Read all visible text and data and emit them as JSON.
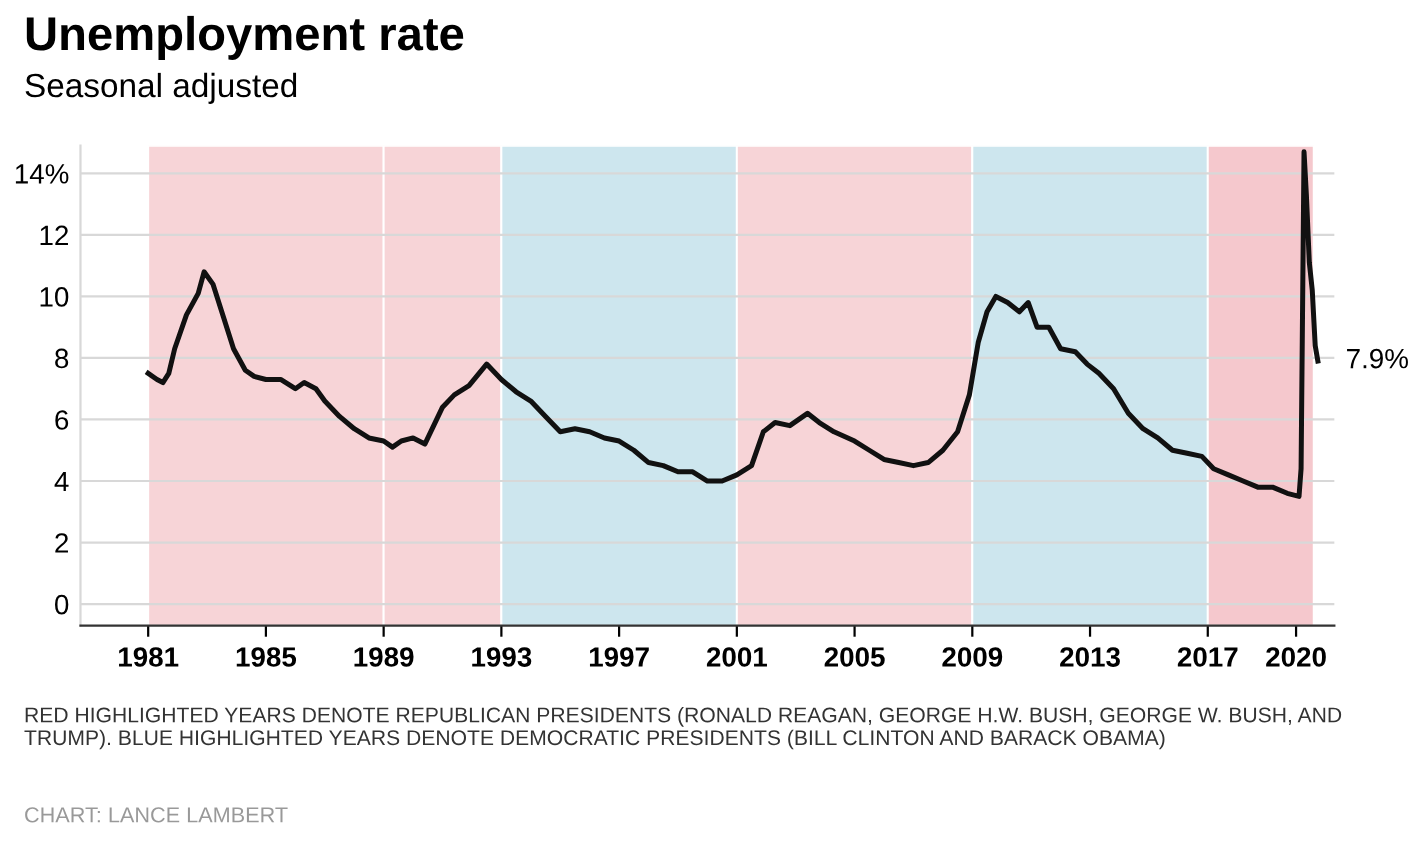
{
  "chart_data": {
    "type": "line",
    "title": "Unemployment rate",
    "subtitle": "Seasonal adjusted",
    "annotations": [
      {
        "text": "7.9%",
        "x": 2020.74,
        "y": 7.9
      },
      "RED HIGHLIGHTED YEARS DENOTE REPUBLICAN PRESIDENTS (RONALD REAGAN, GEORGE H.W. BUSH, GEORGE W. BUSH, AND TRUMP). BLUE HIGHLIGHTED YEARS DENOTE DEMOCRATIC PRESIDENTS (BILL CLINTON AND BARACK OBAMA)",
      "CHART: LANCE LAMBERT"
    ],
    "x": [
      1981.0,
      1981.3,
      1981.5,
      1981.7,
      1981.9,
      1982.3,
      1982.7,
      1982.9,
      1983.2,
      1983.5,
      1983.9,
      1984.3,
      1984.6,
      1985.0,
      1985.5,
      1986.0,
      1986.3,
      1986.7,
      1987.0,
      1987.5,
      1988.0,
      1988.5,
      1989.0,
      1989.3,
      1989.6,
      1990.0,
      1990.4,
      1990.7,
      1991.0,
      1991.4,
      1991.9,
      1992.5,
      1993.0,
      1993.5,
      1994.0,
      1994.5,
      1995.0,
      1995.5,
      1996.0,
      1996.5,
      1997.0,
      1997.5,
      1998.0,
      1998.5,
      1999.0,
      1999.5,
      2000.0,
      2000.5,
      2001.0,
      2001.5,
      2001.9,
      2002.3,
      2002.8,
      2003.4,
      2003.8,
      2004.3,
      2005.0,
      2005.5,
      2006.0,
      2006.5,
      2007.0,
      2007.5,
      2008.0,
      2008.5,
      2008.9,
      2009.2,
      2009.5,
      2009.8,
      2010.2,
      2010.6,
      2010.9,
      2011.2,
      2011.6,
      2012.0,
      2012.5,
      2012.9,
      2013.3,
      2013.8,
      2014.3,
      2014.8,
      2015.3,
      2015.8,
      2016.3,
      2016.8,
      2017.2,
      2017.7,
      2018.2,
      2018.7,
      2019.2,
      2019.7,
      2020.1,
      2020.17,
      2020.27,
      2020.35,
      2020.45,
      2020.55,
      2020.65,
      2020.74
    ],
    "series": [
      {
        "color": "#111111",
        "values": [
          7.5,
          7.3,
          7.2,
          7.5,
          8.3,
          9.4,
          10.1,
          10.8,
          10.4,
          9.5,
          8.3,
          7.6,
          7.4,
          7.3,
          7.3,
          7.0,
          7.2,
          7.0,
          6.6,
          6.1,
          5.7,
          5.4,
          5.3,
          5.1,
          5.3,
          5.4,
          5.2,
          5.8,
          6.4,
          6.8,
          7.1,
          7.8,
          7.3,
          6.9,
          6.6,
          6.1,
          5.6,
          5.7,
          5.6,
          5.4,
          5.3,
          5.0,
          4.6,
          4.5,
          4.3,
          4.3,
          4.0,
          4.0,
          4.2,
          4.5,
          5.6,
          5.9,
          5.8,
          6.2,
          5.9,
          5.6,
          5.3,
          5.0,
          4.7,
          4.6,
          4.5,
          4.6,
          5.0,
          5.6,
          6.8,
          8.5,
          9.5,
          10.0,
          9.8,
          9.5,
          9.8,
          9.0,
          9.0,
          8.3,
          8.2,
          7.8,
          7.5,
          7.0,
          6.2,
          5.7,
          5.4,
          5.0,
          4.9,
          4.8,
          4.4,
          4.2,
          4.0,
          3.8,
          3.8,
          3.6,
          3.5,
          4.4,
          14.7,
          13.3,
          11.1,
          10.2,
          8.4,
          7.9
        ]
      }
    ],
    "xlim": [
      1978.7,
      2021.3
    ],
    "ylim": [
      -0.7,
      14.9
    ],
    "xticks": [
      1981,
      1985,
      1989,
      1993,
      1997,
      2001,
      2005,
      2009,
      2013,
      2017,
      2020
    ],
    "yticks": [
      {
        "value": 0,
        "label": "0"
      },
      {
        "value": 2,
        "label": "2"
      },
      {
        "value": 4,
        "label": "4"
      },
      {
        "value": 6,
        "label": "6"
      },
      {
        "value": 8,
        "label": "8"
      },
      {
        "value": 10,
        "label": "10"
      },
      {
        "value": 12,
        "label": "12"
      },
      {
        "value": 14,
        "label": "14%"
      }
    ],
    "bands": [
      {
        "axis": "x",
        "from": 1981,
        "to": 1989,
        "label": null,
        "color": "#f7d4d7"
      },
      {
        "axis": "x",
        "from": 1989,
        "to": 1993,
        "label": null,
        "color": "#f7d4d7"
      },
      {
        "axis": "x",
        "from": 1993,
        "to": 2001,
        "label": null,
        "color": "#cde6ee"
      },
      {
        "axis": "x",
        "from": 2001,
        "to": 2009,
        "label": null,
        "color": "#f7d4d7"
      },
      {
        "axis": "x",
        "from": 2009,
        "to": 2017,
        "label": null,
        "color": "#cde6ee"
      },
      {
        "axis": "x",
        "from": 2017,
        "to": 2020.6,
        "label": null,
        "color": "#f5c8cd"
      }
    ],
    "grid": "y",
    "line_style": "solid",
    "marker": "none"
  }
}
